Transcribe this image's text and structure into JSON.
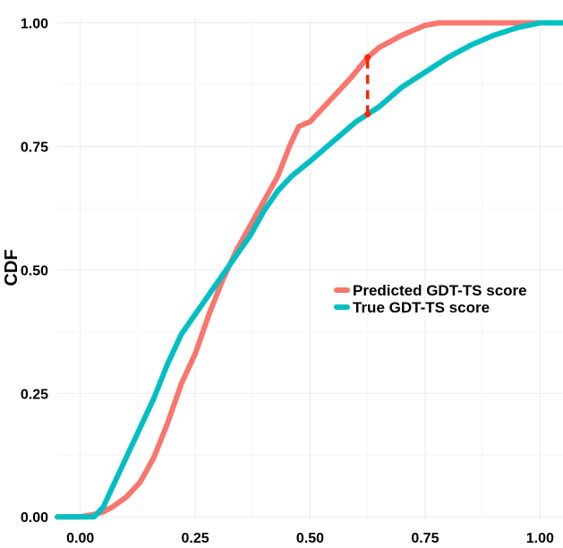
{
  "chart_data": {
    "type": "line",
    "title": "",
    "xlabel": "",
    "ylabel": "CDF",
    "xlim": [
      -0.05,
      1.05
    ],
    "ylim": [
      -0.005,
      1.01
    ],
    "x_ticks": [
      "0.00",
      "0.25",
      "0.50",
      "0.75",
      "1.00"
    ],
    "y_ticks": [
      "0.00",
      "0.25",
      "0.50",
      "0.75",
      "1.00"
    ],
    "grid": true,
    "legend_position": "center-right",
    "series": [
      {
        "name": "Predicted GDT-TS score",
        "color": "#f8766d",
        "points": [
          [
            -0.05,
            0.0
          ],
          [
            0.0,
            0.0
          ],
          [
            0.03,
            0.005
          ],
          [
            0.05,
            0.01
          ],
          [
            0.07,
            0.02
          ],
          [
            0.1,
            0.04
          ],
          [
            0.13,
            0.07
          ],
          [
            0.16,
            0.12
          ],
          [
            0.19,
            0.19
          ],
          [
            0.22,
            0.27
          ],
          [
            0.25,
            0.33
          ],
          [
            0.28,
            0.41
          ],
          [
            0.31,
            0.48
          ],
          [
            0.34,
            0.54
          ],
          [
            0.37,
            0.59
          ],
          [
            0.4,
            0.64
          ],
          [
            0.43,
            0.69
          ],
          [
            0.455,
            0.75
          ],
          [
            0.475,
            0.79
          ],
          [
            0.5,
            0.8
          ],
          [
            0.53,
            0.83
          ],
          [
            0.56,
            0.86
          ],
          [
            0.59,
            0.89
          ],
          [
            0.625,
            0.93
          ],
          [
            0.65,
            0.95
          ],
          [
            0.7,
            0.975
          ],
          [
            0.75,
            0.995
          ],
          [
            0.78,
            1.0
          ],
          [
            1.05,
            1.0
          ]
        ]
      },
      {
        "name": "True GDT-TS score",
        "color": "#00bfc4",
        "points": [
          [
            -0.05,
            0.0
          ],
          [
            0.0,
            0.0
          ],
          [
            0.03,
            0.0
          ],
          [
            0.05,
            0.02
          ],
          [
            0.07,
            0.06
          ],
          [
            0.1,
            0.12
          ],
          [
            0.13,
            0.18
          ],
          [
            0.16,
            0.24
          ],
          [
            0.19,
            0.31
          ],
          [
            0.22,
            0.37
          ],
          [
            0.25,
            0.41
          ],
          [
            0.28,
            0.45
          ],
          [
            0.31,
            0.49
          ],
          [
            0.34,
            0.53
          ],
          [
            0.37,
            0.57
          ],
          [
            0.4,
            0.62
          ],
          [
            0.43,
            0.66
          ],
          [
            0.46,
            0.69
          ],
          [
            0.5,
            0.72
          ],
          [
            0.55,
            0.76
          ],
          [
            0.6,
            0.8
          ],
          [
            0.625,
            0.815
          ],
          [
            0.65,
            0.83
          ],
          [
            0.7,
            0.87
          ],
          [
            0.75,
            0.9
          ],
          [
            0.8,
            0.93
          ],
          [
            0.85,
            0.955
          ],
          [
            0.9,
            0.975
          ],
          [
            0.95,
            0.99
          ],
          [
            1.0,
            1.0
          ],
          [
            1.05,
            1.0
          ]
        ]
      }
    ],
    "annotations": [
      {
        "type": "dashed-segment",
        "color": "#ff2200",
        "x": 0.625,
        "y_from": 0.815,
        "y_to": 0.93
      }
    ]
  }
}
